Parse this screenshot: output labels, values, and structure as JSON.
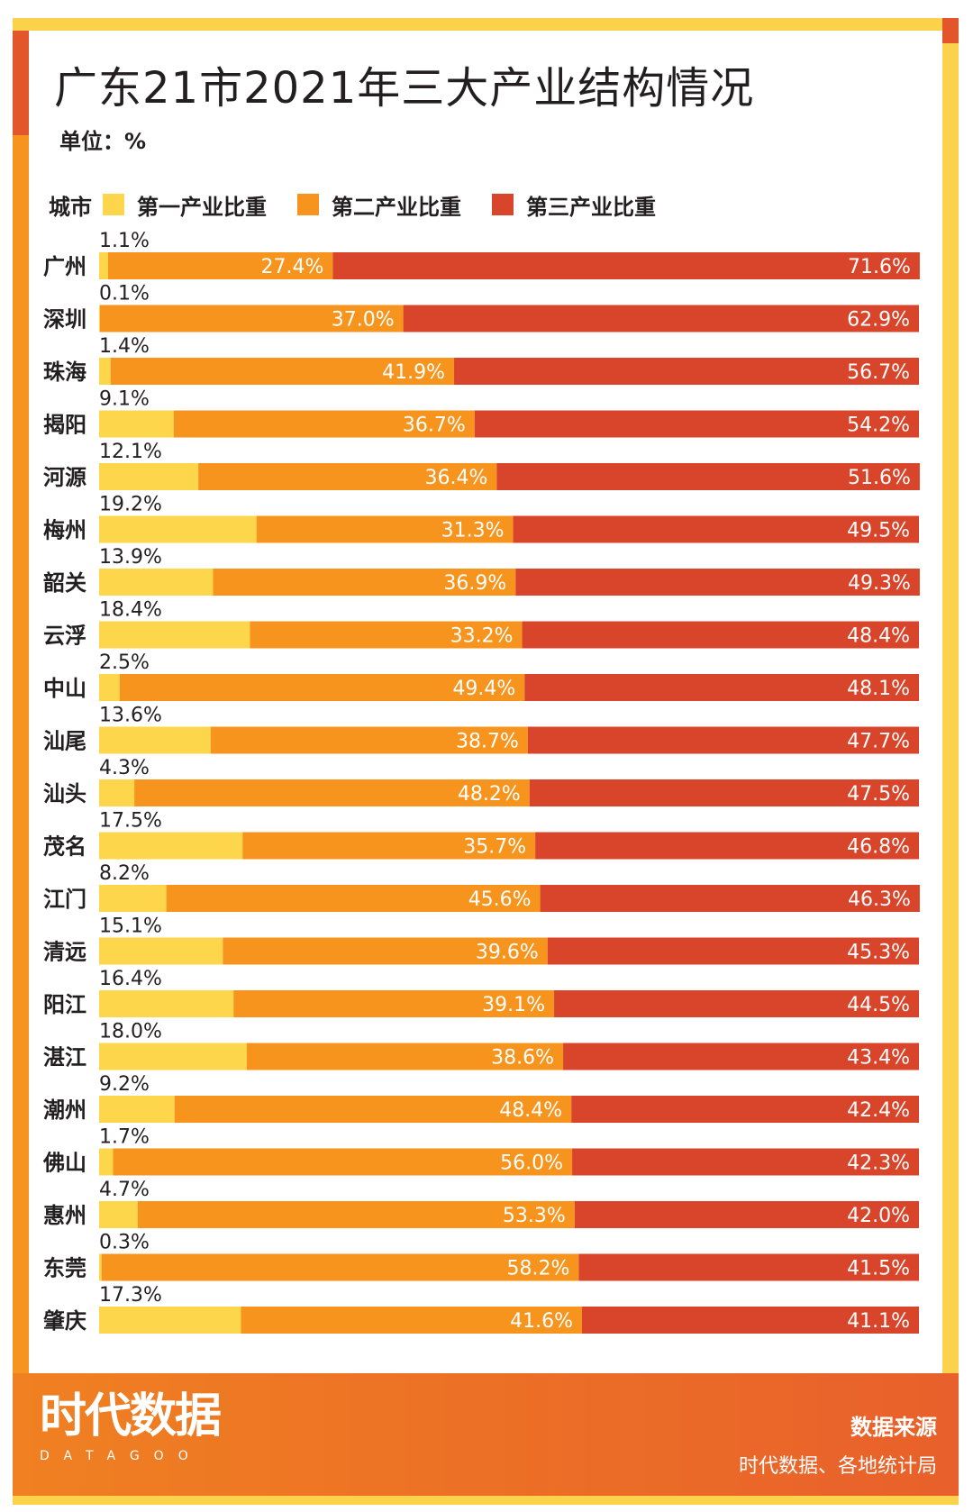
{
  "title": "广东21市2021年三大产业结构情况",
  "unit": "单位：%",
  "legend": {
    "city_label": "城市",
    "primary": "第一产业比重",
    "secondary": "第二产业比重",
    "tertiary": "第三产业比重"
  },
  "colors": {
    "primary": "#fdd64b",
    "secondary": "#f7941d",
    "tertiary": "#d9452a",
    "footer": "#ec6a27"
  },
  "footer": {
    "logo": "时代数据",
    "logo_sub": "DATAGOO",
    "source_label": "数据来源",
    "source_text": "时代数据、各地统计局"
  },
  "chart_data": {
    "type": "bar",
    "stacked": true,
    "orientation": "horizontal",
    "categories": [
      "广州",
      "深圳",
      "珠海",
      "揭阳",
      "河源",
      "梅州",
      "韶关",
      "云浮",
      "中山",
      "汕尾",
      "汕头",
      "茂名",
      "江门",
      "清远",
      "阳江",
      "湛江",
      "潮州",
      "佛山",
      "惠州",
      "东莞",
      "肇庆"
    ],
    "series": [
      {
        "name": "第一产业比重",
        "values": [
          1.1,
          0.1,
          1.4,
          9.1,
          12.1,
          19.2,
          13.9,
          18.4,
          2.5,
          13.6,
          4.3,
          17.5,
          8.2,
          15.1,
          16.4,
          18.0,
          9.2,
          1.7,
          4.7,
          0.3,
          17.3
        ]
      },
      {
        "name": "第二产业比重",
        "values": [
          27.4,
          37.0,
          41.9,
          36.7,
          36.4,
          31.3,
          36.9,
          33.2,
          49.4,
          38.7,
          48.2,
          35.7,
          45.6,
          39.6,
          39.1,
          38.6,
          48.4,
          56.0,
          53.3,
          58.2,
          41.6
        ]
      },
      {
        "name": "第三产业比重",
        "values": [
          71.6,
          62.9,
          56.7,
          54.2,
          51.6,
          49.5,
          49.3,
          48.4,
          48.1,
          47.7,
          47.5,
          46.8,
          46.3,
          45.3,
          44.5,
          43.4,
          42.4,
          42.3,
          42.0,
          41.5,
          41.1
        ]
      }
    ],
    "xlim": [
      0,
      100
    ],
    "value_suffix": "%",
    "legend_position": "top-left"
  }
}
